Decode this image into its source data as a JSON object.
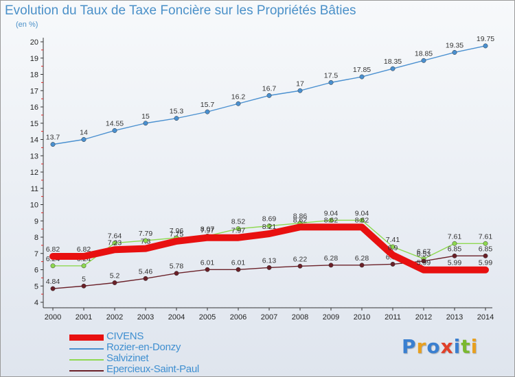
{
  "header": {
    "title": "Evolution du Taux de Taxe Foncière sur les Propriétés Bâties",
    "subtitle": "(en %)"
  },
  "logo": {
    "text": "Proxiti",
    "letters": [
      {
        "ch": "P",
        "color": "#3a7fd0"
      },
      {
        "ch": "r",
        "color": "#e8a020"
      },
      {
        "ch": "o",
        "color": "#3a7fd0"
      },
      {
        "ch": "x",
        "color": "#e0402a"
      },
      {
        "ch": "i",
        "color": "#3a7fd0"
      },
      {
        "ch": "t",
        "color": "#7ab830"
      },
      {
        "ch": "i",
        "color": "#e8a020"
      }
    ]
  },
  "chart_data": {
    "type": "line",
    "title": "Evolution du Taux de Taxe Foncière sur les Propriétés Bâties",
    "ylabel": "(en %)",
    "xlabel": "",
    "x": [
      "2000",
      "2001",
      "2002",
      "2003",
      "2004",
      "2005",
      "2006",
      "2007",
      "2008",
      "2009",
      "2010",
      "2011",
      "2012",
      "2013",
      "2014"
    ],
    "ylim": [
      4,
      20
    ],
    "yticks": [
      4,
      5,
      6,
      7,
      8,
      9,
      10,
      11,
      12,
      13,
      14,
      15,
      16,
      17,
      18,
      19,
      20
    ],
    "grid": false,
    "legend_position": "bottom-left",
    "series": [
      {
        "name": "Rozier-en-Donzy",
        "color": "#4a90d0",
        "values": [
          13.7,
          14,
          14.55,
          15,
          15.3,
          15.7,
          16.2,
          16.7,
          17,
          17.5,
          17.85,
          18.35,
          18.85,
          19.35,
          19.75
        ],
        "labels": [
          "13.7",
          "14",
          "14.55",
          "15",
          "15.3",
          "15.7",
          "16.2",
          "16.7",
          "17",
          "17.5",
          "17.85",
          "18.35",
          "18.85",
          "19.35",
          "19.75"
        ]
      },
      {
        "name": "Salvizinet",
        "color": "#8ed850",
        "values": [
          6.24,
          6.24,
          7.64,
          7.79,
          7.96,
          8.07,
          8.52,
          8.69,
          8.86,
          9.04,
          9.04,
          7.41,
          6.67,
          7.61,
          7.61
        ],
        "labels": [
          "6.24",
          "6.24",
          "7.64",
          "7.79",
          "7.96",
          "8.07",
          "8.52",
          "8.69",
          "8.86",
          "9.04",
          "9.04",
          "7.41",
          "6.67",
          "7.61",
          "7.61"
        ]
      },
      {
        "name": "Epercieux-Saint-Paul",
        "color": "#6a2028",
        "values": [
          4.84,
          5,
          5.2,
          5.46,
          5.78,
          6.01,
          6.01,
          6.13,
          6.22,
          6.28,
          6.28,
          6.34,
          6.53,
          6.85,
          6.85
        ],
        "labels": [
          "4.84",
          "5",
          "5.2",
          "5.46",
          "5.78",
          "6.01",
          "6.01",
          "6.13",
          "6.22",
          "6.28",
          "6.28",
          "6.34",
          "6.53",
          "6.85",
          "6.85"
        ]
      },
      {
        "name": "CIVENS",
        "color": "#e81010",
        "values": [
          6.82,
          6.82,
          7.23,
          7.3,
          7.75,
          7.97,
          7.97,
          8.21,
          8.62,
          8.62,
          8.62,
          6.9,
          5.99,
          5.99,
          5.99
        ],
        "labels": [
          "6.82",
          "6.82",
          "7.23",
          "7.3",
          "7.75",
          "7.97",
          "7.97",
          "8.21",
          "8.62",
          "8.62",
          "8.62",
          "6.9",
          "5.99",
          "5.99",
          "5.99"
        ]
      }
    ],
    "legend": [
      "CIVENS",
      "Rozier-en-Donzy",
      "Salvizinet",
      "Epercieux-Saint-Paul"
    ]
  }
}
